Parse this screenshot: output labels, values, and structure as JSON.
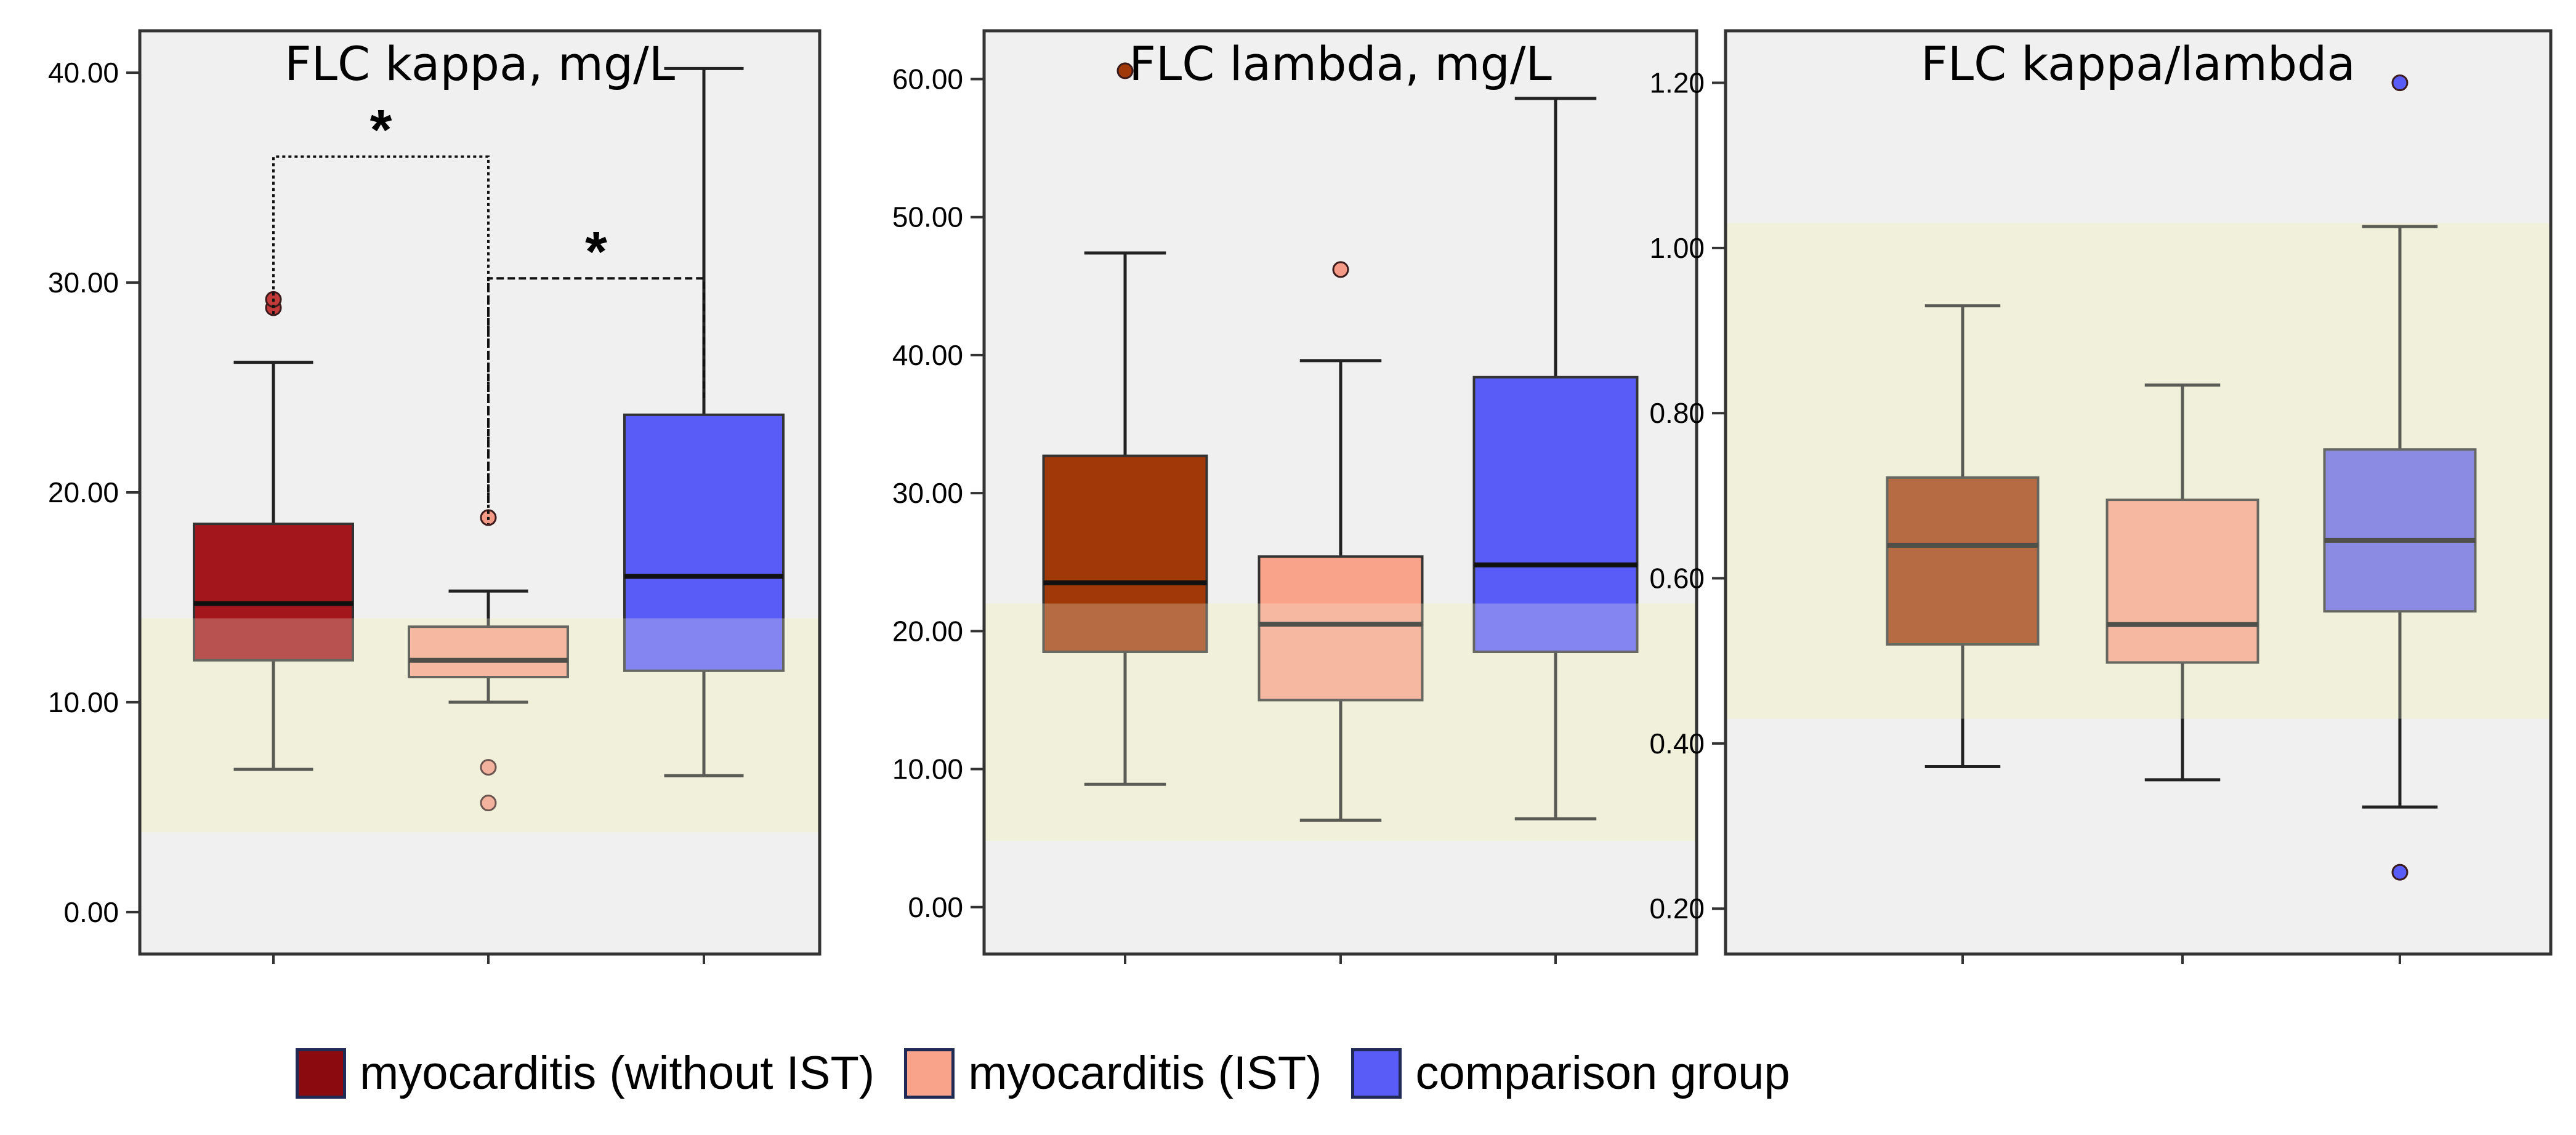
{
  "colors": {
    "without_ist": "#a3161c",
    "ist": "#f8a38a",
    "comparison": "#5a5cf8",
    "reference_band": "#f2f2dc",
    "panel_bg": "#f0f0f0"
  },
  "legend": [
    {
      "label": "myocarditis (without IST)",
      "color": "#8b0a10"
    },
    {
      "label": "myocarditis (IST)",
      "color": "#f8a38a"
    },
    {
      "label": "comparison group",
      "color": "#5a5cf8"
    }
  ],
  "chart_data": [
    {
      "type": "box",
      "title": "FLC kappa, mg/L",
      "ylim": [
        -2,
        42
      ],
      "yticks": [
        "0.00",
        "10.00",
        "20.00",
        "30.00",
        "40.00"
      ],
      "reference_range": [
        3.8,
        14
      ],
      "series": [
        {
          "name": "myocarditis (without IST)",
          "whisker_low": 6.8,
          "q1": 12,
          "median": 14.7,
          "q3": 18.5,
          "whisker_high": 26.2,
          "outliers": [
            28.8,
            29.2
          ],
          "color": "#a3161c",
          "outlier_color": "#c23a3a"
        },
        {
          "name": "myocarditis (IST)",
          "whisker_low": 10,
          "q1": 11.2,
          "median": 12,
          "q3": 13.6,
          "whisker_high": 15.3,
          "outliers": [
            18.8,
            6.9,
            5.2
          ],
          "color": "#f8a38a",
          "outlier_color": "#f49a86"
        },
        {
          "name": "comparison group",
          "whisker_low": 6.5,
          "q1": 11.5,
          "median": 16,
          "q3": 23.7,
          "whisker_high": 40.2,
          "outliers": [],
          "color": "#5a5cf8",
          "outlier_color": "#5a5cf8"
        }
      ],
      "annotations": [
        {
          "label": "*",
          "from": 0,
          "to": 1,
          "left_y": 28.5,
          "right_y": 18.5,
          "top_y": 36
        },
        {
          "label": "*",
          "from": 1,
          "to": 2,
          "left_y": 19.5,
          "right_y": 24.5,
          "top_y": 30.2
        }
      ]
    },
    {
      "type": "box",
      "title": "FLC lambda, mg/L",
      "ylim": [
        -3.4,
        63.5
      ],
      "yticks": [
        "0.00",
        "10.00",
        "20.00",
        "30.00",
        "40.00",
        "50.00",
        "60.00"
      ],
      "reference_range": [
        4.8,
        22
      ],
      "series": [
        {
          "name": "myocarditis (without IST)",
          "whisker_low": 8.9,
          "q1": 18.5,
          "median": 23.5,
          "q3": 32.7,
          "whisker_high": 47.4,
          "outliers": [
            60.6
          ],
          "color": "#a03808",
          "outlier_color": "#a03808"
        },
        {
          "name": "myocarditis (IST)",
          "whisker_low": 6.3,
          "q1": 15,
          "median": 20.5,
          "q3": 25.4,
          "whisker_high": 39.6,
          "outliers": [
            46.2
          ],
          "color": "#f8a38a",
          "outlier_color": "#f49a86"
        },
        {
          "name": "comparison group",
          "whisker_low": 6.4,
          "q1": 18.5,
          "median": 24.8,
          "q3": 38.4,
          "whisker_high": 58.6,
          "outliers": [],
          "color": "#5a5cf8",
          "outlier_color": "#5a5cf8"
        }
      ],
      "annotations": []
    },
    {
      "type": "box",
      "title": "FLC kappa/lambda",
      "ylim": [
        0.145,
        1.263
      ],
      "yticks": [
        "0.20",
        "0.40",
        "0.60",
        "0.80",
        "1.00",
        "1.20"
      ],
      "reference_range": [
        0.43,
        1.03
      ],
      "series": [
        {
          "name": "myocarditis (without IST)",
          "whisker_low": 0.372,
          "q1": 0.52,
          "median": 0.64,
          "q3": 0.722,
          "whisker_high": 0.93,
          "outliers": [],
          "color": "#a03808",
          "outlier_color": "#a03808"
        },
        {
          "name": "myocarditis (IST)",
          "whisker_low": 0.356,
          "q1": 0.498,
          "median": 0.544,
          "q3": 0.695,
          "whisker_high": 0.834,
          "outliers": [],
          "color": "#f8a38a",
          "outlier_color": "#f49a86"
        },
        {
          "name": "comparison group",
          "whisker_low": 0.323,
          "q1": 0.56,
          "median": 0.646,
          "q3": 0.756,
          "whisker_high": 1.026,
          "outliers": [
            1.2,
            0.244
          ],
          "color": "#6464e6",
          "outlier_color": "#5a5cf8"
        }
      ],
      "annotations": []
    }
  ]
}
